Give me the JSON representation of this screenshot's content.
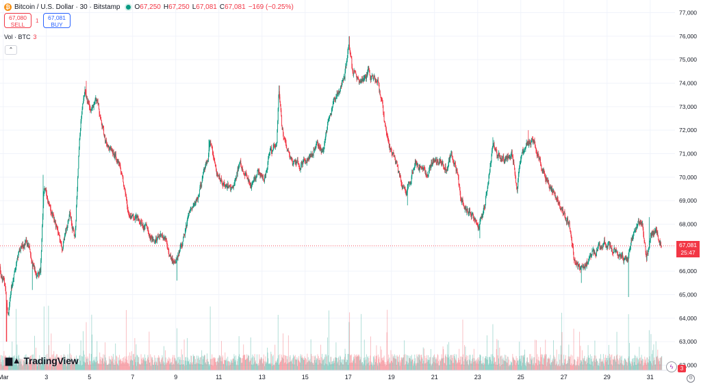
{
  "header": {
    "title": "Bitcoin / U.S. Dollar · 30 · Bitstamp",
    "open_label": "O",
    "open": "67,250",
    "high_label": "H",
    "high": "67,250",
    "low_label": "L",
    "low": "67,081",
    "close_label": "C",
    "close": "67,081",
    "change": "−169 (−0.25%)"
  },
  "trade": {
    "sell_price": "67,080",
    "sell_label": "SELL",
    "spread": "1",
    "buy_price": "67,081",
    "buy_label": "BUY"
  },
  "volume_legend": {
    "label": "Vol · BTC",
    "value": "3"
  },
  "collapse_glyph": "⌃",
  "logo_text": "TradingView",
  "last_price": {
    "price": "67,081",
    "countdown": "25:47"
  },
  "alerts_badge": "3",
  "colors": {
    "up": "#089981",
    "down": "#f23645",
    "grid": "#f0f3fa",
    "last_line": "#f23645"
  },
  "icons": [
    "bitcoin-icon",
    "live-dot-icon",
    "tradingview-logo-icon",
    "collapse-icon",
    "lightning-icon",
    "settings-icon"
  ],
  "chart_data": {
    "type": "candlestick",
    "title": "Bitcoin / U.S. Dollar · 30 · Bitstamp",
    "interval": "30 min",
    "xlabel": "",
    "ylabel": "",
    "x_tick_labels": [
      "Mar",
      "3",
      "5",
      "7",
      "9",
      "11",
      "13",
      "15",
      "17",
      "19",
      "21",
      "23",
      "25",
      "27",
      "29",
      "31"
    ],
    "x_tick_day": [
      1,
      3,
      5,
      7,
      9,
      11,
      13,
      15,
      17,
      19,
      21,
      23,
      25,
      27,
      29,
      31
    ],
    "x_range_days": [
      0.85,
      32.15
    ],
    "y_tick_labels": [
      "62,000",
      "63,000",
      "64,000",
      "65,000",
      "66,000",
      "67,000",
      "68,000",
      "69,000",
      "70,000",
      "71,000",
      "72,000",
      "73,000",
      "74,000",
      "75,000",
      "76,000",
      "77,000"
    ],
    "ylim": [
      61800,
      77300
    ],
    "last_price": 67081,
    "grid": true,
    "price_path": [
      [
        0.85,
        66100
      ],
      [
        1.05,
        65600
      ],
      [
        1.25,
        64200
      ],
      [
        1.45,
        65500
      ],
      [
        1.75,
        66800
      ],
      [
        2.1,
        67300
      ],
      [
        2.4,
        66300
      ],
      [
        2.6,
        65700
      ],
      [
        2.75,
        66000
      ],
      [
        2.9,
        69600
      ],
      [
        3.2,
        68600
      ],
      [
        3.5,
        67800
      ],
      [
        3.75,
        66900
      ],
      [
        4.1,
        68500
      ],
      [
        4.35,
        67400
      ],
      [
        4.55,
        71600
      ],
      [
        4.8,
        73800
      ],
      [
        5.05,
        72800
      ],
      [
        5.35,
        73300
      ],
      [
        5.6,
        72300
      ],
      [
        5.8,
        71400
      ],
      [
        6.1,
        70900
      ],
      [
        6.4,
        70600
      ],
      [
        6.6,
        69600
      ],
      [
        6.8,
        68600
      ],
      [
        7.1,
        68200
      ],
      [
        7.4,
        68100
      ],
      [
        7.7,
        67700
      ],
      [
        8.0,
        67200
      ],
      [
        8.3,
        67600
      ],
      [
        8.65,
        67000
      ],
      [
        8.9,
        66400
      ],
      [
        9.1,
        66600
      ],
      [
        9.35,
        67300
      ],
      [
        9.7,
        68700
      ],
      [
        10.0,
        69100
      ],
      [
        10.3,
        70000
      ],
      [
        10.65,
        71400
      ],
      [
        10.85,
        70500
      ],
      [
        11.1,
        69800
      ],
      [
        11.4,
        69600
      ],
      [
        11.7,
        69400
      ],
      [
        11.95,
        70600
      ],
      [
        12.2,
        70300
      ],
      [
        12.5,
        69500
      ],
      [
        12.85,
        70300
      ],
      [
        13.1,
        69900
      ],
      [
        13.4,
        71100
      ],
      [
        13.7,
        71300
      ],
      [
        13.8,
        73700
      ],
      [
        13.95,
        72000
      ],
      [
        14.2,
        71000
      ],
      [
        14.5,
        70600
      ],
      [
        14.8,
        70500
      ],
      [
        15.1,
        70800
      ],
      [
        15.35,
        71000
      ],
      [
        15.6,
        71500
      ],
      [
        15.85,
        71100
      ],
      [
        16.1,
        72400
      ],
      [
        16.35,
        73200
      ],
      [
        16.6,
        73800
      ],
      [
        16.85,
        74300
      ],
      [
        17.05,
        75700
      ],
      [
        17.2,
        74600
      ],
      [
        17.45,
        74200
      ],
      [
        17.7,
        74000
      ],
      [
        17.95,
        74500
      ],
      [
        18.2,
        74200
      ],
      [
        18.4,
        74000
      ],
      [
        18.6,
        73000
      ],
      [
        18.8,
        71600
      ],
      [
        19.05,
        71000
      ],
      [
        19.3,
        70400
      ],
      [
        19.5,
        69800
      ],
      [
        19.7,
        69300
      ],
      [
        19.9,
        69900
      ],
      [
        20.15,
        70700
      ],
      [
        20.4,
        70300
      ],
      [
        20.7,
        70100
      ],
      [
        21.0,
        70800
      ],
      [
        21.3,
        70700
      ],
      [
        21.55,
        70400
      ],
      [
        21.8,
        70900
      ],
      [
        22.05,
        70200
      ],
      [
        22.25,
        69000
      ],
      [
        22.55,
        68600
      ],
      [
        22.85,
        68300
      ],
      [
        23.1,
        67900
      ],
      [
        23.35,
        68800
      ],
      [
        23.6,
        70500
      ],
      [
        23.75,
        71300
      ],
      [
        24.0,
        70900
      ],
      [
        24.3,
        70700
      ],
      [
        24.6,
        71100
      ],
      [
        24.85,
        69500
      ],
      [
        25.05,
        70900
      ],
      [
        25.3,
        71400
      ],
      [
        25.55,
        71600
      ],
      [
        25.8,
        71000
      ],
      [
        26.1,
        70200
      ],
      [
        26.35,
        69700
      ],
      [
        26.6,
        69100
      ],
      [
        26.85,
        68800
      ],
      [
        27.1,
        68300
      ],
      [
        27.3,
        67800
      ],
      [
        27.5,
        66500
      ],
      [
        27.75,
        66100
      ],
      [
        28.0,
        66300
      ],
      [
        28.3,
        66700
      ],
      [
        28.6,
        66900
      ],
      [
        28.9,
        67300
      ],
      [
        29.2,
        67000
      ],
      [
        29.5,
        66700
      ],
      [
        29.75,
        66600
      ],
      [
        29.95,
        66300
      ],
      [
        30.15,
        67300
      ],
      [
        30.4,
        67900
      ],
      [
        30.65,
        68100
      ],
      [
        30.85,
        66700
      ],
      [
        31.05,
        67500
      ],
      [
        31.3,
        67700
      ],
      [
        31.55,
        67081
      ]
    ],
    "spikes": [
      {
        "day": 2.85,
        "high": 70100
      },
      {
        "day": 4.85,
        "high": 74100
      },
      {
        "day": 10.55,
        "high": 71600
      },
      {
        "day": 13.8,
        "high": 73900
      },
      {
        "day": 17.05,
        "high": 76000
      },
      {
        "day": 23.7,
        "high": 71700
      },
      {
        "day": 25.35,
        "high": 72000
      },
      {
        "day": 30.95,
        "high": 68300
      }
    ],
    "dips": [
      {
        "day": 1.15,
        "low": 63000
      },
      {
        "day": 2.35,
        "low": 65200
      },
      {
        "day": 9.05,
        "low": 65600
      },
      {
        "day": 19.75,
        "low": 68800
      },
      {
        "day": 23.1,
        "low": 67400
      },
      {
        "day": 27.8,
        "low": 65500
      },
      {
        "day": 30.0,
        "low": 64900
      }
    ],
    "volume": {
      "name": "Vol · BTC",
      "last": 3,
      "spike_days": [
        1.6,
        2.9,
        3.1,
        4.7,
        4.85,
        5.1,
        6.7,
        9.05,
        10.6,
        13.75,
        16.1,
        17.05,
        17.6,
        18.8,
        22.3,
        23.7,
        26.9,
        27.45,
        30.0,
        30.95
      ]
    }
  }
}
